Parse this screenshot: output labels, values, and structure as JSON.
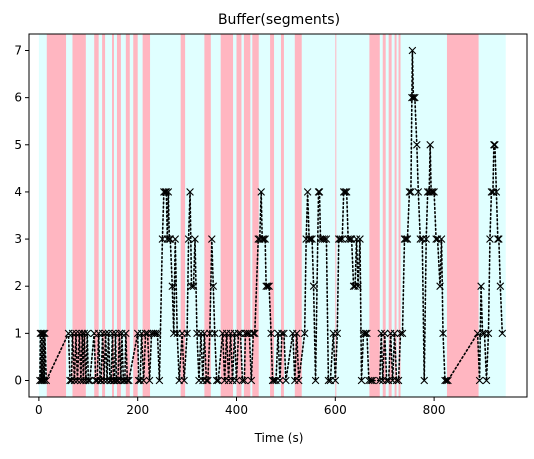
{
  "chart_data": {
    "type": "scatter",
    "title": "Buffer(segments)",
    "xlabel": "Time (s)",
    "ylabel": "",
    "xlim": [
      -20,
      988
    ],
    "ylim": [
      -0.35,
      7.35
    ],
    "xticks": [
      0,
      200,
      400,
      600,
      800
    ],
    "yticks": [
      0,
      1,
      2,
      3,
      4,
      5,
      6,
      7
    ],
    "grid": false,
    "legend": "none",
    "colors": {
      "background_band": "#e0ffff",
      "stall_band": "#ffb6c1",
      "marker": "#000000"
    },
    "background_span": [
      0,
      945
    ],
    "stall_spans": [
      [
        16,
        55
      ],
      [
        68,
        95
      ],
      [
        112,
        121
      ],
      [
        128,
        134
      ],
      [
        148,
        152
      ],
      [
        158,
        166
      ],
      [
        176,
        184
      ],
      [
        191,
        200
      ],
      [
        210,
        225
      ],
      [
        287,
        296
      ],
      [
        335,
        348
      ],
      [
        368,
        393
      ],
      [
        400,
        410
      ],
      [
        415,
        428
      ],
      [
        432,
        445
      ],
      [
        468,
        476
      ],
      [
        490,
        496
      ],
      [
        518,
        532
      ],
      [
        600,
        602
      ],
      [
        669,
        690
      ],
      [
        696,
        702
      ],
      [
        708,
        714
      ],
      [
        720,
        724
      ],
      [
        728,
        732
      ],
      [
        826,
        890
      ]
    ],
    "points": [
      [
        2,
        0
      ],
      [
        3,
        1
      ],
      [
        5,
        0
      ],
      [
        6,
        1
      ],
      [
        8,
        0
      ],
      [
        9,
        1
      ],
      [
        11,
        0
      ],
      [
        12,
        1
      ],
      [
        15,
        0
      ],
      [
        60,
        1
      ],
      [
        63,
        0
      ],
      [
        66,
        0
      ],
      [
        68,
        1
      ],
      [
        72,
        0
      ],
      [
        75,
        1
      ],
      [
        78,
        0
      ],
      [
        82,
        1
      ],
      [
        85,
        0
      ],
      [
        88,
        1
      ],
      [
        90,
        0
      ],
      [
        92,
        1
      ],
      [
        95,
        0
      ],
      [
        98,
        1
      ],
      [
        100,
        0
      ],
      [
        103,
        0
      ],
      [
        112,
        1
      ],
      [
        115,
        0
      ],
      [
        118,
        0
      ],
      [
        121,
        1
      ],
      [
        124,
        0
      ],
      [
        126,
        0
      ],
      [
        129,
        1
      ],
      [
        132,
        0
      ],
      [
        135,
        1
      ],
      [
        138,
        0
      ],
      [
        141,
        1
      ],
      [
        144,
        0
      ],
      [
        146,
        0
      ],
      [
        149,
        1
      ],
      [
        151,
        0
      ],
      [
        153,
        0
      ],
      [
        155,
        1
      ],
      [
        157,
        0
      ],
      [
        160,
        0
      ],
      [
        163,
        1
      ],
      [
        166,
        0
      ],
      [
        168,
        1
      ],
      [
        171,
        0
      ],
      [
        174,
        0
      ],
      [
        176,
        1
      ],
      [
        179,
        0
      ],
      [
        182,
        0
      ],
      [
        200,
        1
      ],
      [
        202,
        0
      ],
      [
        205,
        0
      ],
      [
        208,
        1
      ],
      [
        212,
        0
      ],
      [
        216,
        1
      ],
      [
        220,
        1
      ],
      [
        224,
        0
      ],
      [
        228,
        1
      ],
      [
        232,
        1
      ],
      [
        236,
        1
      ],
      [
        240,
        1
      ],
      [
        244,
        0
      ],
      [
        250,
        3
      ],
      [
        253,
        4
      ],
      [
        256,
        4
      ],
      [
        258,
        4
      ],
      [
        260,
        3
      ],
      [
        262,
        4
      ],
      [
        264,
        3
      ],
      [
        266,
        3
      ],
      [
        270,
        2
      ],
      [
        273,
        1
      ],
      [
        276,
        3
      ],
      [
        280,
        1
      ],
      [
        284,
        0
      ],
      [
        290,
        1
      ],
      [
        294,
        0
      ],
      [
        300,
        1
      ],
      [
        303,
        3
      ],
      [
        306,
        4
      ],
      [
        309,
        2
      ],
      [
        313,
        2
      ],
      [
        316,
        3
      ],
      [
        320,
        1
      ],
      [
        324,
        0
      ],
      [
        328,
        1
      ],
      [
        332,
        0
      ],
      [
        335,
        1
      ],
      [
        339,
        0
      ],
      [
        342,
        0
      ],
      [
        346,
        1
      ],
      [
        350,
        3
      ],
      [
        353,
        2
      ],
      [
        356,
        1
      ],
      [
        360,
        0
      ],
      [
        363,
        0
      ],
      [
        372,
        1
      ],
      [
        376,
        0
      ],
      [
        380,
        1
      ],
      [
        384,
        0
      ],
      [
        388,
        1
      ],
      [
        392,
        0
      ],
      [
        396,
        1
      ],
      [
        400,
        0
      ],
      [
        404,
        1
      ],
      [
        408,
        1
      ],
      [
        412,
        0
      ],
      [
        416,
        0
      ],
      [
        418,
        1
      ],
      [
        422,
        1
      ],
      [
        426,
        1
      ],
      [
        430,
        0
      ],
      [
        434,
        1
      ],
      [
        437,
        1
      ],
      [
        444,
        3
      ],
      [
        447,
        3
      ],
      [
        450,
        4
      ],
      [
        452,
        3
      ],
      [
        455,
        3
      ],
      [
        458,
        3
      ],
      [
        460,
        2
      ],
      [
        463,
        2
      ],
      [
        466,
        2
      ],
      [
        470,
        1
      ],
      [
        473,
        0
      ],
      [
        476,
        0
      ],
      [
        480,
        0
      ],
      [
        484,
        1
      ],
      [
        488,
        0
      ],
      [
        492,
        1
      ],
      [
        496,
        1
      ],
      [
        500,
        0
      ],
      [
        514,
        1
      ],
      [
        518,
        0
      ],
      [
        522,
        1
      ],
      [
        526,
        0
      ],
      [
        538,
        1
      ],
      [
        541,
        3
      ],
      [
        544,
        4
      ],
      [
        547,
        3
      ],
      [
        550,
        3
      ],
      [
        553,
        3
      ],
      [
        556,
        2
      ],
      [
        560,
        0
      ],
      [
        566,
        4
      ],
      [
        568,
        4
      ],
      [
        570,
        3
      ],
      [
        574,
        3
      ],
      [
        578,
        3
      ],
      [
        582,
        3
      ],
      [
        586,
        0
      ],
      [
        590,
        0
      ],
      [
        596,
        1
      ],
      [
        600,
        0
      ],
      [
        604,
        1
      ],
      [
        607,
        3
      ],
      [
        610,
        3
      ],
      [
        614,
        3
      ],
      [
        617,
        4
      ],
      [
        620,
        4
      ],
      [
        623,
        4
      ],
      [
        626,
        3
      ],
      [
        630,
        3
      ],
      [
        633,
        3
      ],
      [
        637,
        2
      ],
      [
        640,
        2
      ],
      [
        643,
        3
      ],
      [
        646,
        2
      ],
      [
        650,
        3
      ],
      [
        653,
        0
      ],
      [
        657,
        1
      ],
      [
        661,
        1
      ],
      [
        664,
        1
      ],
      [
        668,
        0
      ],
      [
        672,
        0
      ],
      [
        675,
        0
      ],
      [
        690,
        0
      ],
      [
        693,
        1
      ],
      [
        696,
        0
      ],
      [
        700,
        1
      ],
      [
        704,
        0
      ],
      [
        708,
        0
      ],
      [
        712,
        1
      ],
      [
        716,
        0
      ],
      [
        720,
        1
      ],
      [
        724,
        0
      ],
      [
        728,
        0
      ],
      [
        732,
        1
      ],
      [
        736,
        1
      ],
      [
        740,
        3
      ],
      [
        743,
        3
      ],
      [
        746,
        3
      ],
      [
        750,
        4
      ],
      [
        753,
        4
      ],
      [
        755,
        6
      ],
      [
        756,
        7
      ],
      [
        758,
        6
      ],
      [
        761,
        6
      ],
      [
        765,
        5
      ],
      [
        768,
        4
      ],
      [
        772,
        3
      ],
      [
        776,
        3
      ],
      [
        780,
        0
      ],
      [
        784,
        3
      ],
      [
        787,
        4
      ],
      [
        790,
        4
      ],
      [
        792,
        5
      ],
      [
        794,
        4
      ],
      [
        797,
        4
      ],
      [
        800,
        4
      ],
      [
        804,
        3
      ],
      [
        807,
        3
      ],
      [
        812,
        2
      ],
      [
        815,
        3
      ],
      [
        818,
        1
      ],
      [
        822,
        0
      ],
      [
        825,
        0
      ],
      [
        828,
        0
      ],
      [
        888,
        1
      ],
      [
        892,
        0
      ],
      [
        895,
        2
      ],
      [
        898,
        1
      ],
      [
        902,
        1
      ],
      [
        906,
        0
      ],
      [
        910,
        1
      ],
      [
        913,
        3
      ],
      [
        916,
        4
      ],
      [
        919,
        4
      ],
      [
        921,
        5
      ],
      [
        923,
        5
      ],
      [
        926,
        4
      ],
      [
        929,
        3
      ],
      [
        931,
        3
      ],
      [
        934,
        2
      ],
      [
        938,
        1
      ]
    ]
  }
}
